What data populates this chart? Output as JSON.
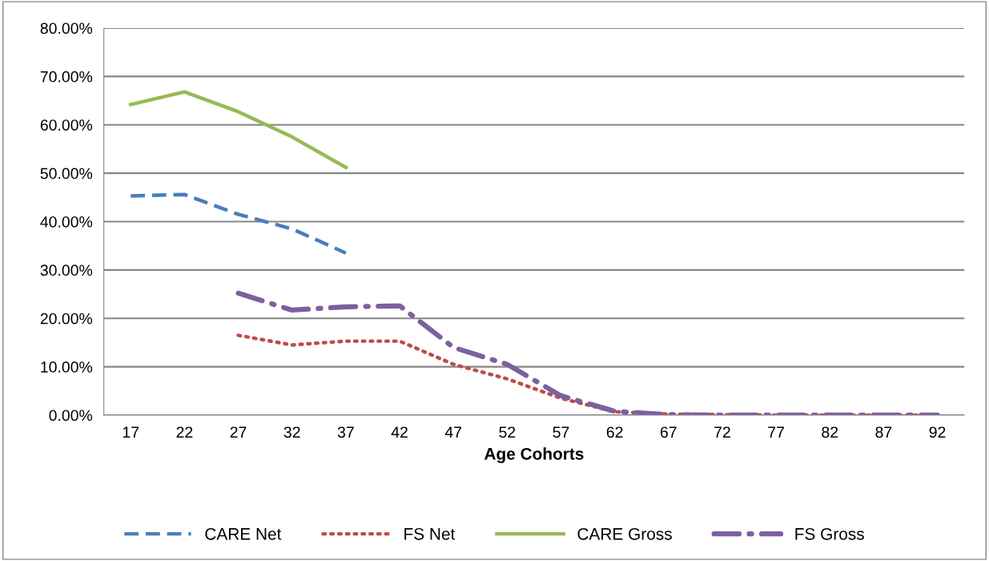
{
  "chart_data": {
    "type": "line",
    "xlabel": "Age Cohorts",
    "categories": [
      "17",
      "22",
      "27",
      "32",
      "37",
      "42",
      "47",
      "52",
      "57",
      "62",
      "67",
      "72",
      "77",
      "82",
      "87",
      "92"
    ],
    "series": [
      {
        "name": "CARE Net",
        "color": "#4a7ebb",
        "line_style": "dashed",
        "values": [
          45.3,
          45.6,
          41.5,
          38.5,
          33.5,
          null,
          null,
          null,
          null,
          null,
          null,
          null,
          null,
          null,
          null,
          null
        ]
      },
      {
        "name": "FS Net",
        "color": "#be4b48",
        "line_style": "dotted",
        "values": [
          null,
          null,
          16.5,
          14.5,
          15.3,
          15.3,
          10.5,
          7.5,
          3.5,
          0.7,
          0.2,
          0.1,
          0,
          0,
          0,
          0
        ]
      },
      {
        "name": "CARE Gross",
        "color": "#98b954",
        "line_style": "solid",
        "values": [
          64.2,
          66.8,
          62.7,
          57.5,
          51.2,
          null,
          null,
          null,
          null,
          null,
          null,
          null,
          null,
          null,
          null,
          null
        ]
      },
      {
        "name": "FS Gross",
        "color": "#7d60a0",
        "line_style": "dashdot",
        "values": [
          null,
          null,
          25.2,
          21.7,
          22.4,
          22.6,
          14,
          10.5,
          4,
          0.8,
          0.1,
          0,
          0,
          0,
          0,
          0
        ]
      }
    ],
    "ylim": [
      0,
      80
    ],
    "yticks": [
      {
        "value": 0,
        "label": "0.00%"
      },
      {
        "value": 10,
        "label": "10.00%"
      },
      {
        "value": 20,
        "label": "20.00%"
      },
      {
        "value": 30,
        "label": "30.00%"
      },
      {
        "value": 40,
        "label": "40.00%"
      },
      {
        "value": 50,
        "label": "50.00%"
      },
      {
        "value": 60,
        "label": "60.00%"
      },
      {
        "value": 70,
        "label": "70.00%"
      },
      {
        "value": 80,
        "label": "80.00%"
      }
    ],
    "grid": "y",
    "legend": "bottom",
    "marker": "none"
  }
}
